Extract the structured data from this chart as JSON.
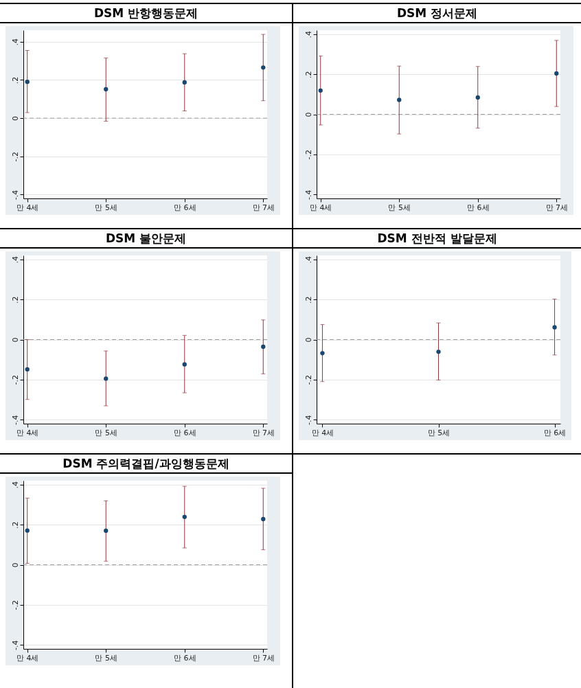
{
  "chart_data": [
    {
      "type": "scatter",
      "title": "DSM 반항행동문제",
      "categories": [
        "만 4세",
        "만 5세",
        "만 6세",
        "만 7세"
      ],
      "values": [
        0.19,
        0.151,
        0.187,
        0.265
      ],
      "errors": [
        [
          0.029,
          0.354
        ],
        [
          -0.016,
          0.315
        ],
        [
          0.038,
          0.337
        ],
        [
          0.091,
          0.438
        ]
      ],
      "color": "#1a476f",
      "marker": "circle",
      "ylim": [
        -0.42,
        0.46
      ],
      "yticks": [
        {
          "value": -0.4,
          "label": "-.4"
        },
        {
          "value": -0.2,
          "label": "-.2"
        },
        {
          "value": 0,
          "label": "0"
        },
        {
          "value": 0.2,
          "label": ".2"
        },
        {
          "value": 0.4,
          "label": ".4"
        }
      ],
      "grid": "y",
      "ref_lines": [
        {
          "axis": "y",
          "value": 0,
          "color": "#a0a0a0",
          "line_style": "dashed"
        }
      ]
    },
    {
      "type": "scatter",
      "title": "DSM 정서문제",
      "categories": [
        "만 4세",
        "만 5세",
        "만 6세",
        "만 7세"
      ],
      "values": [
        0.119,
        0.072,
        0.084,
        0.204
      ],
      "errors": [
        [
          -0.053,
          0.291
        ],
        [
          -0.098,
          0.241
        ],
        [
          -0.069,
          0.239
        ],
        [
          0.039,
          0.369
        ]
      ],
      "color": "#1a476f",
      "marker": "circle",
      "ylim": [
        -0.42,
        0.42
      ],
      "yticks": [
        {
          "value": -0.4,
          "label": "-.4"
        },
        {
          "value": -0.2,
          "label": "-.2"
        },
        {
          "value": 0,
          "label": "0"
        },
        {
          "value": 0.2,
          "label": ".2"
        },
        {
          "value": 0.4,
          "label": ".4"
        }
      ],
      "grid": "y",
      "ref_lines": [
        {
          "axis": "y",
          "value": 0,
          "color": "#a0a0a0",
          "line_style": "dashed"
        }
      ]
    },
    {
      "type": "scatter",
      "title": "DSM 불안문제",
      "categories": [
        "만 4세",
        "만 5세",
        "만 6세",
        "만 7세"
      ],
      "values": [
        -0.149,
        -0.195,
        -0.124,
        -0.036
      ],
      "errors": [
        [
          -0.299,
          0
        ],
        [
          -0.331,
          -0.057
        ],
        [
          -0.266,
          0.021
        ],
        [
          -0.171,
          0.098
        ]
      ],
      "color": "#1a476f",
      "marker": "circle",
      "ylim": [
        -0.42,
        0.42
      ],
      "yticks": [
        {
          "value": -0.4,
          "label": "-.4"
        },
        {
          "value": -0.2,
          "label": "-.2"
        },
        {
          "value": 0,
          "label": "0"
        },
        {
          "value": 0.2,
          "label": ".2"
        },
        {
          "value": 0.4,
          "label": ".4"
        }
      ],
      "grid": "y",
      "ref_lines": [
        {
          "axis": "y",
          "value": 0,
          "color": "#a0a0a0",
          "line_style": "dashed"
        }
      ]
    },
    {
      "type": "scatter",
      "title": "DSM 전반적 발달문제",
      "categories": [
        "만 4세",
        "만 5세",
        "만 6세"
      ],
      "values": [
        -0.068,
        -0.061,
        0.061
      ],
      "errors": [
        [
          -0.21,
          0.075
        ],
        [
          -0.202,
          0.083
        ],
        [
          -0.077,
          0.202
        ]
      ],
      "color": "#1a476f",
      "marker": "circle",
      "ylim": [
        -0.42,
        0.42
      ],
      "yticks": [
        {
          "value": -0.4,
          "label": "-.4"
        },
        {
          "value": -0.2,
          "label": "-.2"
        },
        {
          "value": 0,
          "label": "0"
        },
        {
          "value": 0.2,
          "label": ".2"
        },
        {
          "value": 0.4,
          "label": ".4"
        }
      ],
      "grid": "y",
      "ref_lines": [
        {
          "axis": "y",
          "value": 0,
          "color": "#a0a0a0",
          "line_style": "dashed"
        }
      ]
    },
    {
      "type": "scatter",
      "title": "DSM 주의력결핍/과잉행동문제",
      "categories": [
        "만 4세",
        "만 5세",
        "만 6세",
        "만 7세"
      ],
      "values": [
        0.171,
        0.17,
        0.239,
        0.228
      ],
      "errors": [
        [
          0.007,
          0.333
        ],
        [
          0.018,
          0.319
        ],
        [
          0.084,
          0.392
        ],
        [
          0.075,
          0.382
        ]
      ],
      "color": "#1a476f",
      "marker": "circle",
      "ylim": [
        -0.42,
        0.42
      ],
      "yticks": [
        {
          "value": -0.4,
          "label": "-.4"
        },
        {
          "value": -0.2,
          "label": "-.2"
        },
        {
          "value": 0,
          "label": "0"
        },
        {
          "value": 0.2,
          "label": ".2"
        },
        {
          "value": 0.4,
          "label": ".4"
        }
      ],
      "grid": "y",
      "ref_lines": [
        {
          "axis": "y",
          "value": 0,
          "color": "#a0a0a0",
          "line_style": "dashed"
        }
      ]
    }
  ]
}
